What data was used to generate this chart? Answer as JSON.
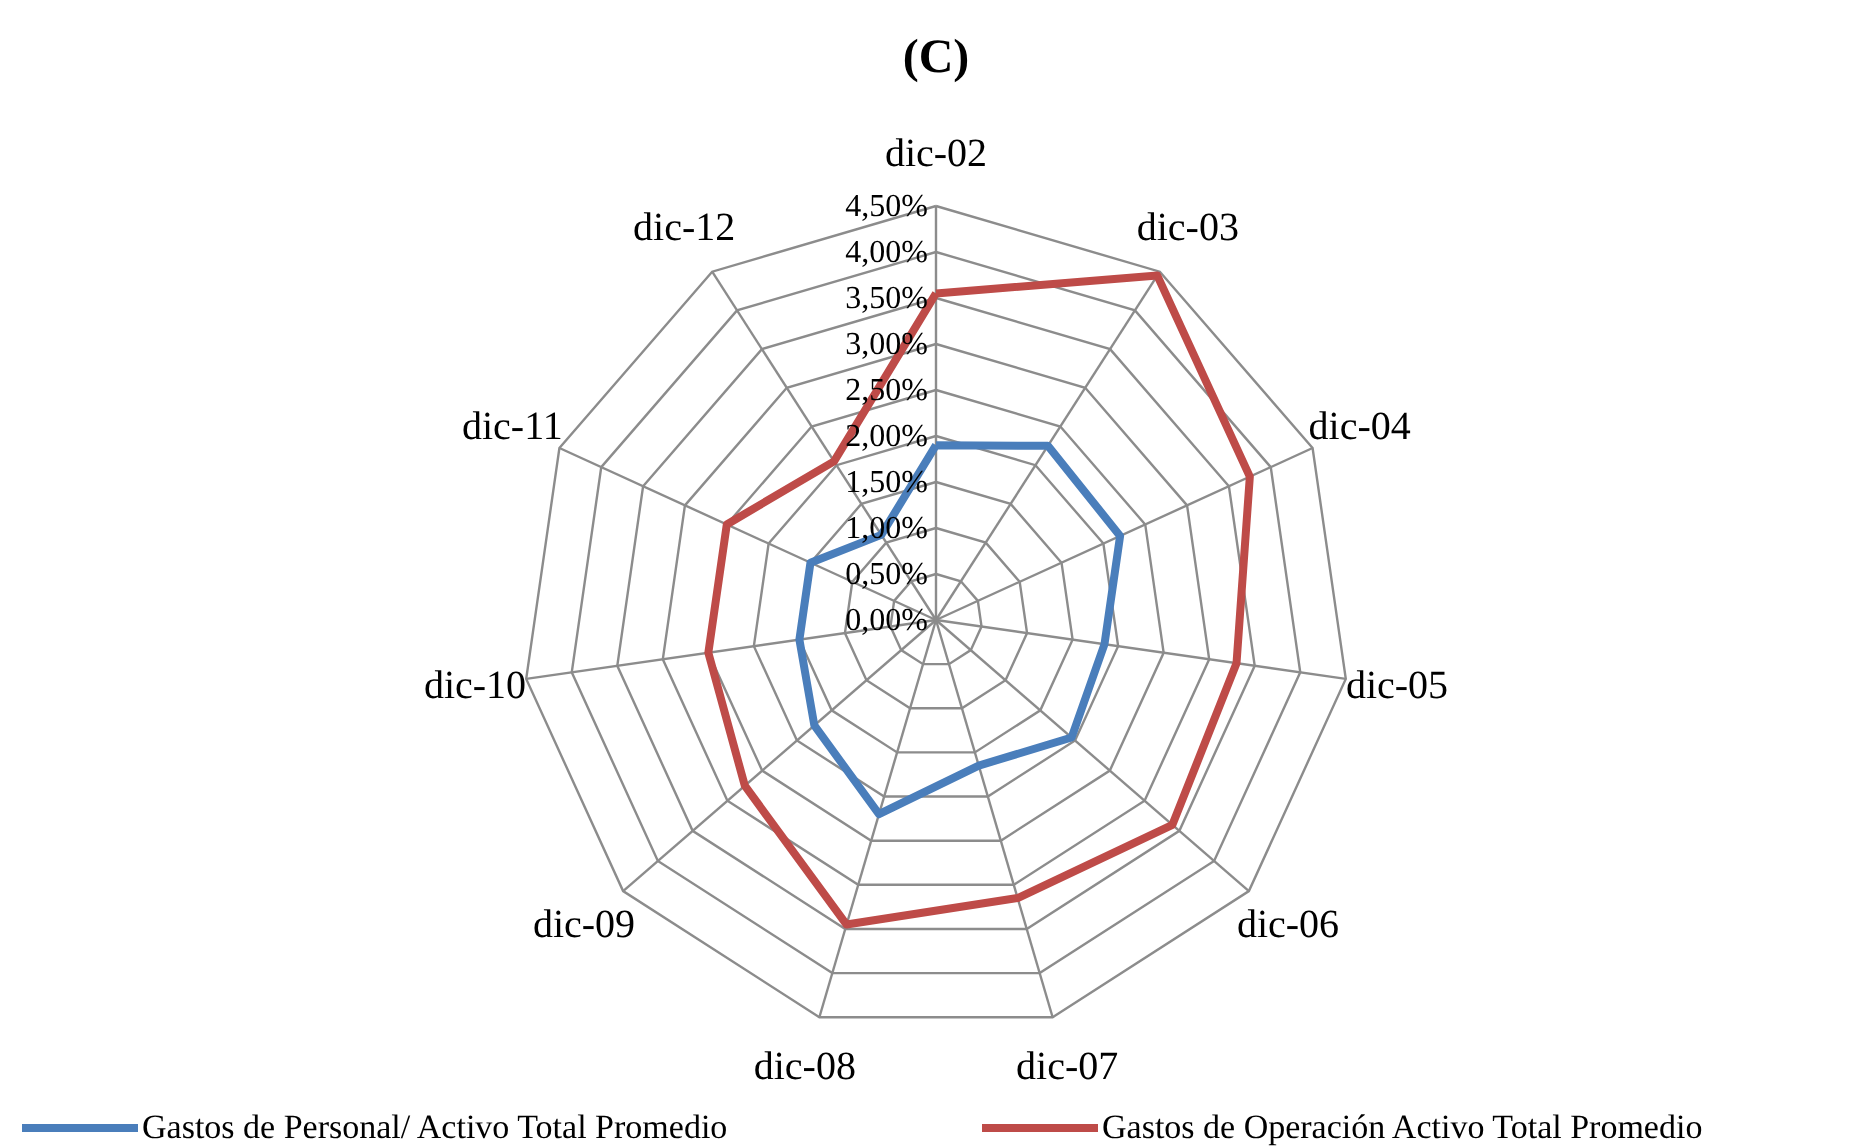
{
  "chart_data": {
    "type": "radar",
    "title": "(C)",
    "categories": [
      "dic-02",
      "dic-03",
      "dic-04",
      "dic-05",
      "dic-06",
      "dic-07",
      "dic-08",
      "dic-09",
      "dic-10",
      "dic-11",
      "dic-12"
    ],
    "ylim": [
      0,
      4.5
    ],
    "yticks": [
      {
        "value": 0,
        "label": "0,00%"
      },
      {
        "value": 0.5,
        "label": "0,50%"
      },
      {
        "value": 1,
        "label": "1,00%"
      },
      {
        "value": 1.5,
        "label": "1,50%"
      },
      {
        "value": 2,
        "label": "2,00%"
      },
      {
        "value": 2.5,
        "label": "2,50%"
      },
      {
        "value": 3,
        "label": "3,00%"
      },
      {
        "value": 3.5,
        "label": "3,50%"
      },
      {
        "value": 4,
        "label": "4,00%"
      },
      {
        "value": 4.5,
        "label": "4,50%"
      }
    ],
    "grid": true,
    "legend": "bottom",
    "series": [
      {
        "name": "Gastos de Personal/ Activo Total Promedio",
        "color": "#4a7ebb",
        "values": [
          1.9,
          2.25,
          2.2,
          1.85,
          1.95,
          1.65,
          2.2,
          1.75,
          1.5,
          1.5,
          1.1
        ]
      },
      {
        "name": "Gastos de Operación Activo Total Promedio",
        "color": "#be4b48",
        "values": [
          3.55,
          4.45,
          3.75,
          3.3,
          3.4,
          3.15,
          3.45,
          2.75,
          2.5,
          2.5,
          2.05
        ]
      }
    ]
  }
}
